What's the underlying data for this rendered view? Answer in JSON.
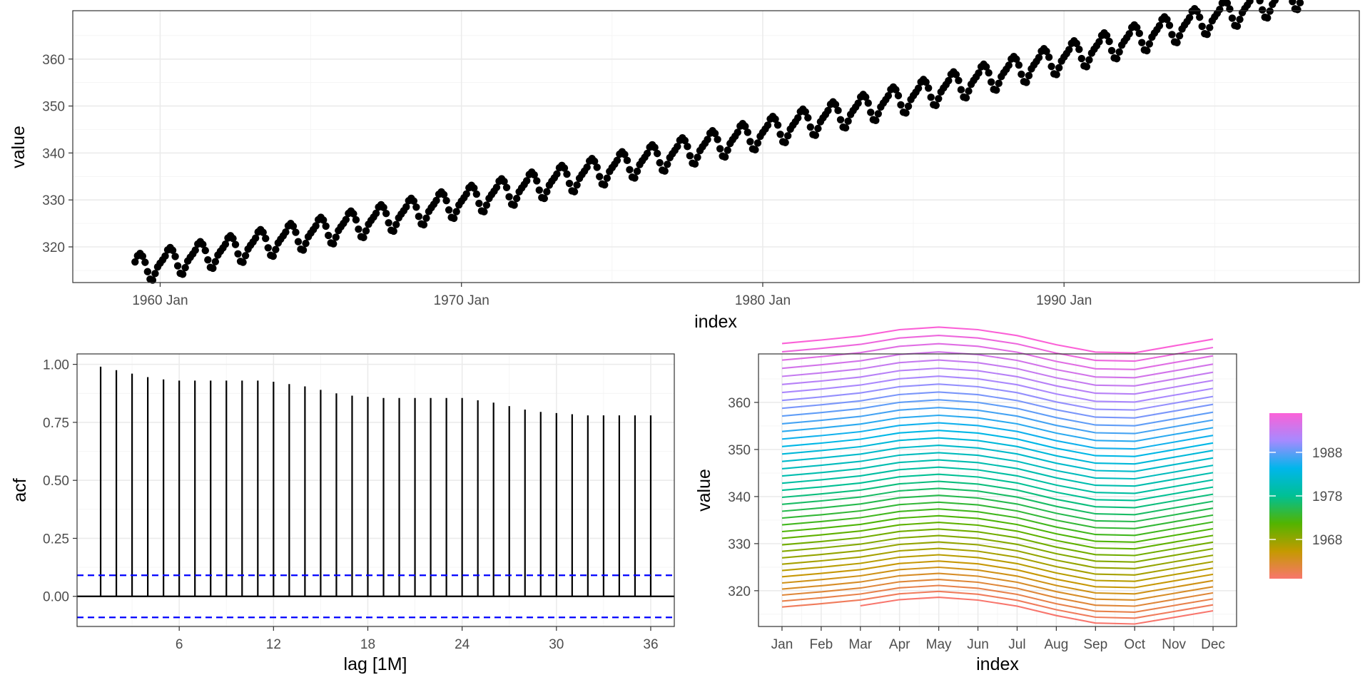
{
  "chart_data": [
    {
      "type": "scatter",
      "series_desc": "monthly values, Mar 1959 - Dec 1997",
      "x_start_year": 1959,
      "x_start_month": 3,
      "n_months": 466,
      "trend": {
        "base": 315.8,
        "slope": 0.1031,
        "curv": 4.95e-05
      },
      "seasonal": [
        -0.3,
        0.3,
        1.0,
        2.2,
        2.6,
        1.9,
        0.5,
        -1.6,
        -3.3,
        -3.6,
        -2.3,
        -1.0
      ],
      "xlabel": "index",
      "ylabel": "value",
      "x_tick_labels": [
        "1960 Jan",
        "1970 Jan",
        "1980 Jan",
        "1990 Jan"
      ],
      "x_tick_years": [
        1960,
        1970,
        1980,
        1990
      ],
      "x_range_years": [
        1957.1,
        1999.8
      ],
      "y_ticks": [
        320,
        330,
        340,
        350,
        360
      ],
      "ylim": [
        312.4,
        370.3
      ],
      "grid": true
    },
    {
      "type": "bar",
      "subtype": "acf",
      "lags": [
        1,
        2,
        3,
        4,
        5,
        6,
        7,
        8,
        9,
        10,
        11,
        12,
        13,
        14,
        15,
        16,
        17,
        18,
        19,
        20,
        21,
        22,
        23,
        24,
        25,
        26,
        27,
        28,
        29,
        30,
        31,
        32,
        33,
        34,
        35,
        36
      ],
      "values": [
        0.99,
        0.975,
        0.96,
        0.945,
        0.935,
        0.93,
        0.93,
        0.93,
        0.93,
        0.93,
        0.93,
        0.925,
        0.915,
        0.905,
        0.89,
        0.875,
        0.865,
        0.86,
        0.855,
        0.855,
        0.855,
        0.855,
        0.855,
        0.855,
        0.845,
        0.835,
        0.82,
        0.805,
        0.795,
        0.79,
        0.785,
        0.78,
        0.78,
        0.78,
        0.78,
        0.78
      ],
      "ci": 0.0908,
      "xlabel": "lag [1M]",
      "ylabel": "acf",
      "x_ticks": [
        6,
        12,
        18,
        24,
        30,
        36
      ],
      "xlim": [
        -0.5,
        37.5
      ],
      "y_ticks": [
        0.0,
        0.25,
        0.5,
        0.75,
        1.0
      ],
      "y_tick_labels": [
        "0.00",
        "0.25",
        "0.50",
        "0.75",
        "1.00"
      ],
      "ylim": [
        -0.13,
        1.045
      ],
      "ci_color": "#0000ff"
    },
    {
      "type": "line",
      "subtype": "seasonal",
      "categories": [
        "Jan",
        "Feb",
        "Mar",
        "Apr",
        "May",
        "Jun",
        "Jul",
        "Aug",
        "Sep",
        "Oct",
        "Nov",
        "Dec"
      ],
      "year_range": [
        1959,
        1997
      ],
      "xlabel": "index",
      "ylabel": "value",
      "y_ticks": [
        320,
        330,
        340,
        350,
        360
      ],
      "ylim": [
        312.4,
        370.3
      ],
      "legend": {
        "position": "right",
        "breaks": [
          "1968",
          "1978",
          "1988"
        ],
        "break_years": [
          1968,
          1978,
          1988
        ],
        "colors": [
          "#f8766d",
          "#c49a00",
          "#53b400",
          "#00c094",
          "#00b6eb",
          "#a58aff",
          "#fb61d7"
        ]
      }
    }
  ]
}
